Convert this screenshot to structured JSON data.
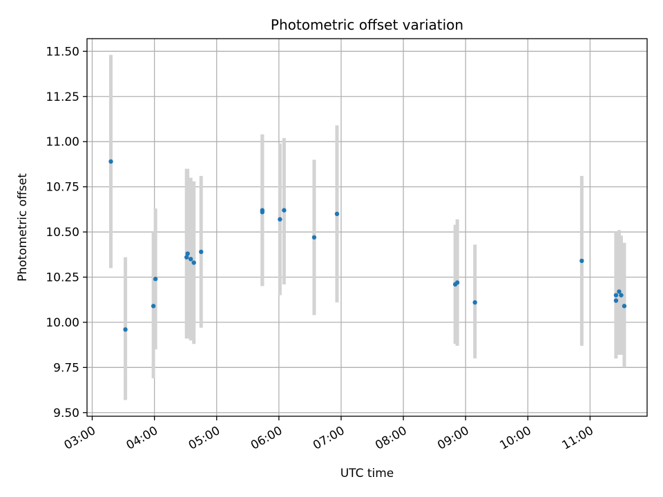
{
  "chart_data": {
    "type": "scatter",
    "title": "Photometric offset variation",
    "xlabel": "UTC time",
    "ylabel": "Photometric offset",
    "x_axis_type": "time",
    "xlim": [
      "02:55",
      "11:55"
    ],
    "ylim": [
      9.48,
      11.57
    ],
    "grid": true,
    "yticks": [
      "9.50",
      "9.75",
      "10.00",
      "10.25",
      "10.50",
      "10.75",
      "11.00",
      "11.25",
      "11.50"
    ],
    "xticks": [
      "03:00",
      "04:00",
      "05:00",
      "06:00",
      "07:00",
      "08:00",
      "09:00",
      "10:00",
      "11:00"
    ],
    "colors": {
      "points": "#1f77b4",
      "error_bars": "#d3d3d3",
      "grid": "#b0b0b0"
    },
    "points": [
      {
        "x": "03:18",
        "y": 10.89,
        "err_low": 10.3,
        "err_high": 11.48
      },
      {
        "x": "03:32",
        "y": 9.96,
        "err_low": 9.57,
        "err_high": 10.36
      },
      {
        "x": "03:59",
        "y": 10.09,
        "err_low": 9.69,
        "err_high": 10.5
      },
      {
        "x": "04:01",
        "y": 10.24,
        "err_low": 9.85,
        "err_high": 10.63
      },
      {
        "x": "04:31",
        "y": 10.36,
        "err_low": 9.91,
        "err_high": 10.85
      },
      {
        "x": "04:32",
        "y": 10.38,
        "err_low": 9.91,
        "err_high": 10.85
      },
      {
        "x": "04:35",
        "y": 10.35,
        "err_low": 9.9,
        "err_high": 10.8
      },
      {
        "x": "04:38",
        "y": 10.33,
        "err_low": 9.88,
        "err_high": 10.78
      },
      {
        "x": "04:45",
        "y": 10.39,
        "err_low": 9.97,
        "err_high": 10.81
      },
      {
        "x": "05:44",
        "y": 10.61,
        "err_low": 10.2,
        "err_high": 11.04
      },
      {
        "x": "05:44",
        "y": 10.62,
        "err_low": 10.2,
        "err_high": 11.04
      },
      {
        "x": "06:01",
        "y": 10.57,
        "err_low": 10.15,
        "err_high": 10.99
      },
      {
        "x": "06:05",
        "y": 10.62,
        "err_low": 10.21,
        "err_high": 11.02
      },
      {
        "x": "06:34",
        "y": 10.47,
        "err_low": 10.04,
        "err_high": 10.9
      },
      {
        "x": "06:56",
        "y": 10.6,
        "err_low": 10.11,
        "err_high": 11.09
      },
      {
        "x": "08:50",
        "y": 10.21,
        "err_low": 9.88,
        "err_high": 10.54
      },
      {
        "x": "08:52",
        "y": 10.22,
        "err_low": 9.87,
        "err_high": 10.57
      },
      {
        "x": "09:09",
        "y": 10.11,
        "err_low": 9.8,
        "err_high": 10.43
      },
      {
        "x": "10:52",
        "y": 10.34,
        "err_low": 9.87,
        "err_high": 10.81
      },
      {
        "x": "11:25",
        "y": 10.12,
        "err_low": 9.8,
        "err_high": 10.5
      },
      {
        "x": "11:25",
        "y": 10.15,
        "err_low": 9.8,
        "err_high": 10.5
      },
      {
        "x": "11:28",
        "y": 10.17,
        "err_low": 9.82,
        "err_high": 10.51
      },
      {
        "x": "11:30",
        "y": 10.15,
        "err_low": 9.82,
        "err_high": 10.48
      },
      {
        "x": "11:33",
        "y": 10.09,
        "err_low": 9.75,
        "err_high": 10.44
      }
    ]
  }
}
